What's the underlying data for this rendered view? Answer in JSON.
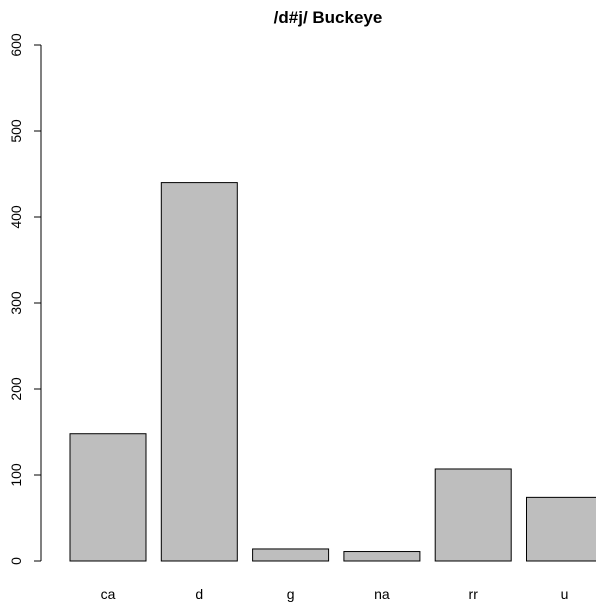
{
  "chart_data": {
    "type": "bar",
    "title": "/d#j/ Buckeye",
    "xlabel": "",
    "ylabel": "",
    "categories": [
      "ca",
      "d",
      "g",
      "na",
      "rr",
      "u"
    ],
    "values": [
      148,
      440,
      14,
      11,
      107,
      74
    ],
    "ylim": [
      0,
      600
    ],
    "yticks": [
      0,
      100,
      200,
      300,
      400,
      500,
      600
    ],
    "bar_color": "#bebebe",
    "border_color": "#000000",
    "grid": false,
    "legend": "none"
  }
}
